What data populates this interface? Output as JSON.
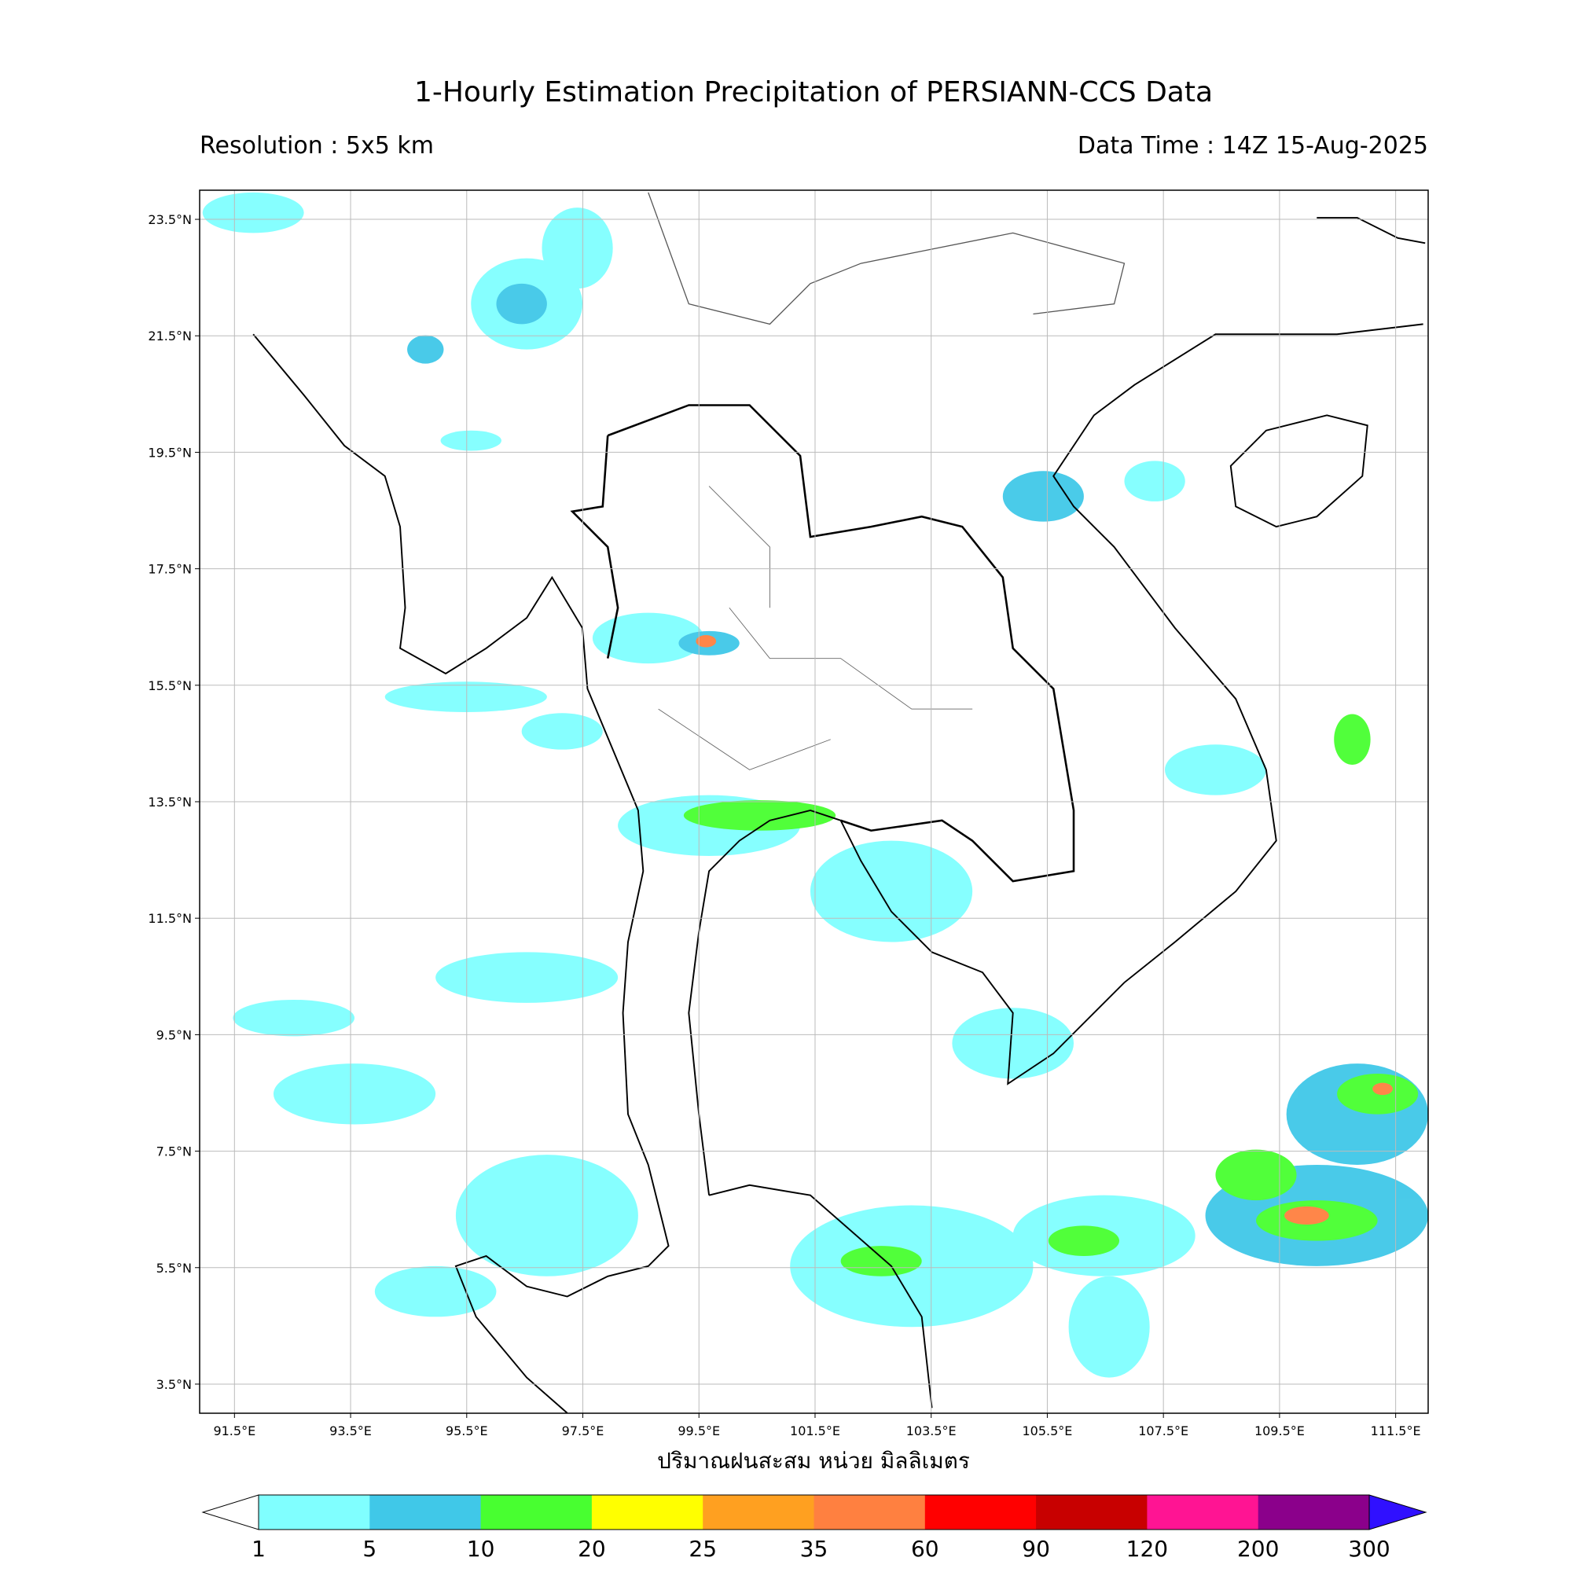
{
  "chart_data": {
    "type": "map",
    "title": "1-Hourly Estimation Precipitation of PERSIANN-CCS Data",
    "subtitle_left": "Resolution : 5x5 km",
    "subtitle_right": "Data Time : 14Z 15-Aug-2025",
    "x_label": "ปริมาณฝนสะสม หน่วย มิลลิเมตร",
    "xlim": [
      90.9,
      112.06
    ],
    "ylim": [
      3.0,
      24.0
    ],
    "grid": true,
    "xticks": [
      {
        "value": 91.5,
        "label": "91.5°E"
      },
      {
        "value": 93.5,
        "label": "93.5°E"
      },
      {
        "value": 95.5,
        "label": "95.5°E"
      },
      {
        "value": 97.5,
        "label": "97.5°E"
      },
      {
        "value": 99.5,
        "label": "99.5°E"
      },
      {
        "value": 101.5,
        "label": "101.5°E"
      },
      {
        "value": 103.5,
        "label": "103.5°E"
      },
      {
        "value": 105.5,
        "label": "105.5°E"
      },
      {
        "value": 107.5,
        "label": "107.5°E"
      },
      {
        "value": 109.5,
        "label": "109.5°E"
      },
      {
        "value": 111.5,
        "label": "111.5°E"
      }
    ],
    "yticks": [
      {
        "value": 3.5,
        "label": "3.5°N"
      },
      {
        "value": 5.5,
        "label": "5.5°N"
      },
      {
        "value": 7.5,
        "label": "7.5°N"
      },
      {
        "value": 9.5,
        "label": "9.5°N"
      },
      {
        "value": 11.5,
        "label": "11.5°N"
      },
      {
        "value": 13.5,
        "label": "13.5°N"
      },
      {
        "value": 15.5,
        "label": "15.5°N"
      },
      {
        "value": 17.5,
        "label": "17.5°N"
      },
      {
        "value": 19.5,
        "label": "19.5°N"
      },
      {
        "value": 21.5,
        "label": "21.5°N"
      },
      {
        "value": 23.5,
        "label": "23.5°N"
      }
    ],
    "colorbar": {
      "levels": [
        1,
        5,
        10,
        20,
        25,
        35,
        60,
        90,
        120,
        200,
        300
      ],
      "colors": [
        "#80ffff",
        "#40c8e8",
        "#48ff30",
        "#ffff00",
        "#ffa020",
        "#ff8040",
        "#ff0000",
        "#c80000",
        "#ff1493",
        "#8b008b"
      ],
      "over_color": "#3010ff",
      "under_color": "#ffffff"
    }
  }
}
